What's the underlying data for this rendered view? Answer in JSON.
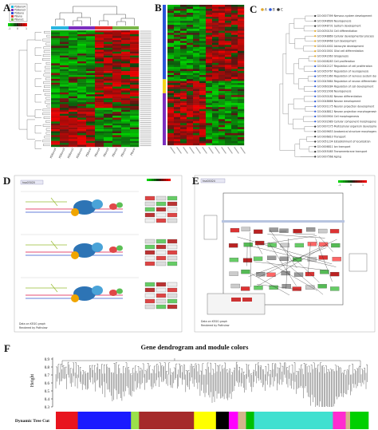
{
  "panels": {
    "A": {
      "label": "A",
      "legend": [
        "PS8ano4",
        "PS8ano3",
        "PS8ano",
        "P8ano",
        "P8ano1"
      ],
      "legend_colors": [
        "#1fb4d8",
        "#7b2fbf",
        "#2f4fd8",
        "#e03030",
        "#7ab648"
      ],
      "scale_ticks": [
        "-1",
        "0",
        "1"
      ],
      "col_labels": [
        "PS8ano4",
        "PS8ano3",
        "PS8ano2",
        "PS8ano1",
        "PS8ano",
        "P8ano4",
        "P8ano3",
        "P8ano2",
        "P8ano1",
        "P8ano"
      ],
      "group_colors": [
        "#29b6e0",
        "#29b6e0",
        "#7b2fbf",
        "#7b2fbf",
        "#7b2fbf",
        "#e02a2a",
        "#e02a2a",
        "#7ab648",
        "#7ab648",
        "#7ab648"
      ]
    },
    "B": {
      "label": "B",
      "sidebar_colors": [
        "#2a56d8",
        "#f2d51c",
        "#7b2fbf"
      ]
    },
    "C": {
      "label": "C",
      "legend": [
        "A",
        "B",
        "C"
      ],
      "legend_colors": [
        "#e0a72a",
        "#2a56d8",
        "#333333"
      ],
      "terms": [
        "GO:0007399 Nervous system development",
        "GO:0048699 Neurogenesis",
        "GO:0048731 System development",
        "GO:0030154 Cell differentiation",
        "GO:0048869 Cellular developmental process",
        "GO:0048468 Cell development",
        "GO:0014002 Astrocyte development",
        "GO:0010001 Glial cell differentiation",
        "GO:0042063 Gliogenesis",
        "GO:0008283 Cell proliferation",
        "GO:0042127 Regulation of cell proliferation",
        "GO:0050767 Regulation of neurogenesis",
        "GO:0051960 Regulation of nervous system development",
        "GO:0045664 Regulation of neuron differentiation",
        "GO:0060284 Regulation of cell development",
        "GO:0022008 Neurogenesis",
        "GO:0030182 Neuron differentiation",
        "GO:0048666 Neuron development",
        "GO:0031175 Neuron projection development",
        "GO:0048812 Neuron projection morphogenesis",
        "GO:0000904 Cell morphogenesis",
        "GO:0032989 Cellular component morphogenesis",
        "GO:0007275 Multicellular organism development",
        "GO:0009653 Anatomical structure morphogenesis",
        "GO:0006810 Transport",
        "GO:0051234 Establishment of localization",
        "GO:0006811 Ion transport",
        "GO:0055085 Transmembrane transport",
        "GO:0007568 Aging"
      ]
    },
    "D": {
      "label": "D",
      "header": "hsa03020",
      "footer_line1": "Data on KEGG graph",
      "footer_line2": "Rendered by Pathview"
    },
    "E": {
      "label": "E",
      "header": "hsa04024",
      "scale_ticks": [
        "-1",
        "0",
        "1"
      ],
      "footer_line1": "Data on KEGG graph",
      "footer_line2": "Rendered by Pathview"
    },
    "F": {
      "label": "F",
      "title": "Gene dendrogram and module colors",
      "ylabel": "Height",
      "yticks": [
        "0.3",
        "0.4",
        "0.5",
        "0.6",
        "0.7",
        "0.8",
        "0.9"
      ],
      "track_label": "Dynamic Tree Cut",
      "modules": [
        {
          "color": "#e8141e",
          "w": 0.06
        },
        {
          "color": "#1a1aff",
          "w": 0.145
        },
        {
          "color": "#9be14a",
          "w": 0.022
        },
        {
          "color": "#a52a2a",
          "w": 0.15
        },
        {
          "color": "#ffff00",
          "w": 0.06
        },
        {
          "color": "#000000",
          "w": 0.035
        },
        {
          "color": "#ff00ff",
          "w": 0.025
        },
        {
          "color": "#d2b48c",
          "w": 0.022
        },
        {
          "color": "#00c000",
          "w": 0.022
        },
        {
          "color": "#40e0d0",
          "w": 0.215
        },
        {
          "color": "#ff2bd0",
          "w": 0.035
        },
        {
          "color": "#d2b48c",
          "w": 0.012
        },
        {
          "color": "#00d000",
          "w": 0.05
        }
      ]
    }
  }
}
